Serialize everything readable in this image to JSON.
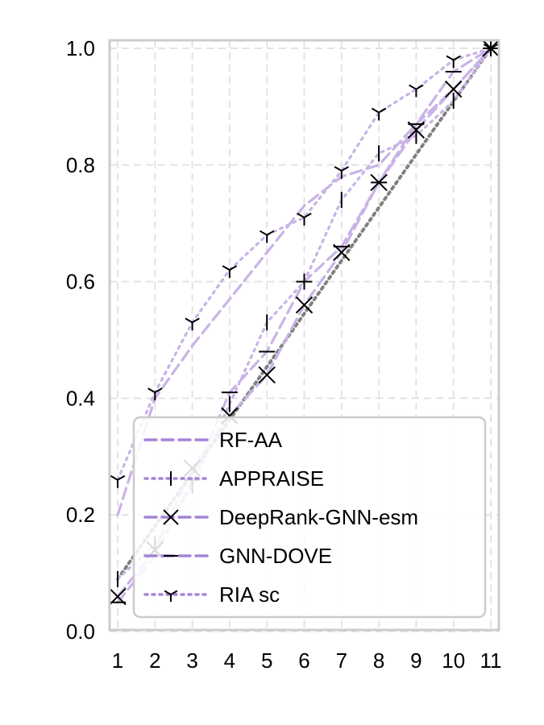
{
  "chart_data": {
    "type": "line",
    "title": "",
    "xlabel": "",
    "ylabel": "",
    "x": [
      1,
      2,
      3,
      4,
      5,
      6,
      7,
      8,
      9,
      10,
      11
    ],
    "xlim": [
      1,
      11
    ],
    "ylim": [
      0.0,
      1.0
    ],
    "xticks": [
      "1",
      "2",
      "3",
      "4",
      "5",
      "6",
      "7",
      "8",
      "9",
      "10",
      "11"
    ],
    "yticks": [
      "0.0",
      "0.2",
      "0.4",
      "0.6",
      "0.8",
      "1.0"
    ],
    "grid": true,
    "legend_position": "lower-right",
    "reference_line": {
      "from": [
        1,
        0.09
      ],
      "to": [
        11,
        1.0
      ],
      "color": "#808080",
      "style": "dotted"
    },
    "series": [
      {
        "name": "RF-AA",
        "color": "#c9b3e6",
        "linestyle": "dashed",
        "marker": "none",
        "values": [
          0.2,
          0.4,
          0.49,
          0.57,
          0.65,
          0.73,
          0.78,
          0.8,
          0.87,
          0.93,
          1.0
        ]
      },
      {
        "name": "APPRAISE",
        "color": "#c9b3e6",
        "linestyle": "dotted",
        "marker": "vline",
        "values": [
          0.09,
          0.15,
          0.25,
          0.39,
          0.53,
          0.6,
          0.74,
          0.82,
          0.85,
          0.91,
          1.0
        ]
      },
      {
        "name": "DeepRank-GNN-esm",
        "color": "#c9b3e6",
        "linestyle": "dashed",
        "marker": "x",
        "values": [
          0.06,
          0.14,
          0.28,
          0.37,
          0.44,
          0.56,
          0.65,
          0.77,
          0.86,
          0.93,
          1.0
        ]
      },
      {
        "name": "GNN-DOVE",
        "color": "#c9b3e6",
        "linestyle": "dashed",
        "marker": "hline",
        "values": [
          0.05,
          0.13,
          0.26,
          0.41,
          0.48,
          0.6,
          0.66,
          0.77,
          0.87,
          0.96,
          1.0
        ]
      },
      {
        "name": "RIA sc",
        "color": "#c9b3e6",
        "linestyle": "dotted",
        "marker": "tri",
        "values": [
          0.26,
          0.41,
          0.53,
          0.62,
          0.68,
          0.71,
          0.79,
          0.89,
          0.93,
          0.98,
          1.0
        ]
      }
    ],
    "legend_swatch_color": "#a585d6"
  }
}
